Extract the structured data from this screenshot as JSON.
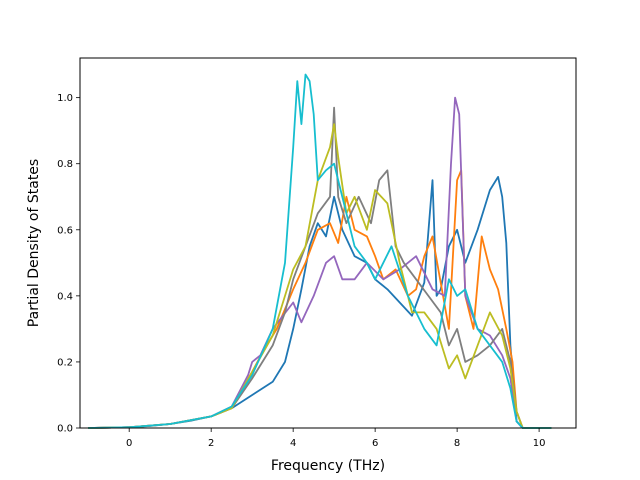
{
  "chart_data": {
    "type": "line",
    "title": "",
    "xlabel": "Frequency (THz)",
    "ylabel": "Partial Density of States",
    "xlim": [
      -1.2,
      10.9
    ],
    "ylim": [
      0.0,
      1.12
    ],
    "xticks": [
      0,
      2,
      4,
      6,
      8,
      10
    ],
    "yticks": [
      0.0,
      0.2,
      0.4,
      0.6,
      0.8,
      1.0
    ],
    "xtick_labels": [
      "0",
      "2",
      "4",
      "6",
      "8",
      "10"
    ],
    "ytick_labels": [
      "0.0",
      "0.2",
      "0.4",
      "0.6",
      "0.8",
      "1.0"
    ],
    "grid": false,
    "legend": "none",
    "series": [
      {
        "color": "#1f77b4",
        "x": [
          -1.0,
          0.0,
          0.5,
          1.0,
          1.5,
          2.0,
          2.5,
          3.0,
          3.5,
          3.8,
          4.0,
          4.2,
          4.4,
          4.6,
          4.8,
          5.0,
          5.2,
          5.5,
          5.8,
          6.0,
          6.3,
          6.6,
          6.9,
          7.2,
          7.4,
          7.5,
          7.6,
          7.8,
          8.0,
          8.2,
          8.5,
          8.8,
          9.0,
          9.1,
          9.2,
          9.3,
          9.45,
          9.6,
          10.3
        ],
        "y": [
          0.0,
          0.002,
          0.006,
          0.012,
          0.022,
          0.035,
          0.06,
          0.1,
          0.14,
          0.2,
          0.3,
          0.42,
          0.55,
          0.62,
          0.58,
          0.7,
          0.6,
          0.52,
          0.5,
          0.45,
          0.42,
          0.38,
          0.34,
          0.44,
          0.75,
          0.4,
          0.42,
          0.55,
          0.6,
          0.5,
          0.6,
          0.72,
          0.76,
          0.7,
          0.56,
          0.25,
          0.02,
          0.0,
          0.0
        ]
      },
      {
        "color": "#ff7f0e",
        "x": [
          -1.0,
          0.0,
          1.0,
          2.0,
          2.5,
          3.0,
          3.3,
          3.6,
          4.0,
          4.3,
          4.6,
          4.9,
          5.1,
          5.3,
          5.5,
          5.8,
          6.0,
          6.2,
          6.5,
          6.8,
          7.0,
          7.2,
          7.4,
          7.6,
          7.8,
          8.0,
          8.1,
          8.2,
          8.4,
          8.6,
          8.8,
          9.0,
          9.2,
          9.35,
          9.45,
          9.6,
          10.3
        ],
        "y": [
          0.0,
          0.002,
          0.012,
          0.035,
          0.06,
          0.17,
          0.24,
          0.3,
          0.42,
          0.5,
          0.6,
          0.62,
          0.56,
          0.7,
          0.6,
          0.58,
          0.52,
          0.45,
          0.48,
          0.4,
          0.42,
          0.52,
          0.58,
          0.44,
          0.3,
          0.75,
          0.78,
          0.4,
          0.3,
          0.58,
          0.48,
          0.42,
          0.3,
          0.2,
          0.05,
          0.0,
          0.0
        ]
      },
      {
        "color": "#9467bd",
        "x": [
          -1.0,
          0.0,
          1.0,
          2.0,
          2.5,
          2.9,
          3.0,
          3.2,
          3.5,
          4.0,
          4.2,
          4.5,
          4.8,
          5.0,
          5.2,
          5.5,
          5.8,
          6.2,
          6.6,
          7.0,
          7.4,
          7.7,
          7.85,
          7.95,
          8.05,
          8.2,
          8.5,
          8.8,
          9.1,
          9.3,
          9.45,
          9.6,
          10.3
        ],
        "y": [
          0.0,
          0.002,
          0.012,
          0.035,
          0.065,
          0.16,
          0.2,
          0.22,
          0.3,
          0.38,
          0.32,
          0.4,
          0.5,
          0.52,
          0.45,
          0.45,
          0.5,
          0.45,
          0.48,
          0.52,
          0.42,
          0.4,
          0.8,
          1.0,
          0.95,
          0.4,
          0.3,
          0.28,
          0.22,
          0.15,
          0.02,
          0.0,
          0.0
        ]
      },
      {
        "color": "#7f7f7f",
        "x": [
          -1.0,
          0.0,
          1.0,
          2.0,
          2.5,
          3.0,
          3.5,
          3.8,
          4.0,
          4.3,
          4.6,
          4.9,
          5.0,
          5.1,
          5.3,
          5.6,
          5.9,
          6.1,
          6.3,
          6.5,
          6.7,
          7.0,
          7.3,
          7.6,
          7.8,
          8.0,
          8.2,
          8.5,
          8.8,
          9.1,
          9.3,
          9.45,
          9.6,
          10.3
        ],
        "y": [
          0.0,
          0.002,
          0.012,
          0.035,
          0.06,
          0.15,
          0.25,
          0.35,
          0.45,
          0.55,
          0.65,
          0.7,
          0.97,
          0.7,
          0.62,
          0.7,
          0.62,
          0.75,
          0.78,
          0.55,
          0.5,
          0.45,
          0.4,
          0.35,
          0.25,
          0.3,
          0.2,
          0.22,
          0.25,
          0.3,
          0.2,
          0.05,
          0.0,
          0.0
        ]
      },
      {
        "color": "#bcbd22",
        "x": [
          -1.0,
          0.0,
          1.0,
          2.0,
          2.5,
          3.0,
          3.5,
          4.0,
          4.3,
          4.6,
          4.9,
          5.0,
          5.1,
          5.3,
          5.5,
          5.8,
          6.0,
          6.3,
          6.6,
          6.9,
          7.2,
          7.5,
          7.8,
          8.0,
          8.2,
          8.5,
          8.8,
          9.1,
          9.3,
          9.45,
          9.6,
          10.3
        ],
        "y": [
          0.0,
          0.002,
          0.012,
          0.035,
          0.06,
          0.17,
          0.28,
          0.48,
          0.55,
          0.75,
          0.85,
          0.92,
          0.82,
          0.65,
          0.7,
          0.6,
          0.72,
          0.68,
          0.5,
          0.35,
          0.35,
          0.3,
          0.18,
          0.22,
          0.15,
          0.25,
          0.35,
          0.28,
          0.18,
          0.05,
          0.0,
          0.0
        ]
      },
      {
        "color": "#17becf",
        "x": [
          -1.0,
          0.0,
          1.0,
          2.0,
          2.5,
          3.0,
          3.5,
          3.8,
          4.0,
          4.1,
          4.2,
          4.3,
          4.4,
          4.5,
          4.6,
          4.8,
          5.0,
          5.2,
          5.5,
          5.8,
          6.0,
          6.4,
          6.8,
          7.2,
          7.5,
          7.8,
          8.0,
          8.2,
          8.5,
          8.8,
          9.1,
          9.3,
          9.45,
          9.6,
          10.3
        ],
        "y": [
          0.0,
          0.002,
          0.012,
          0.035,
          0.065,
          0.16,
          0.3,
          0.5,
          0.85,
          1.05,
          0.92,
          1.07,
          1.05,
          0.95,
          0.75,
          0.78,
          0.8,
          0.7,
          0.55,
          0.5,
          0.45,
          0.55,
          0.4,
          0.3,
          0.25,
          0.45,
          0.4,
          0.42,
          0.3,
          0.25,
          0.2,
          0.12,
          0.02,
          0.0,
          0.0
        ]
      }
    ]
  }
}
